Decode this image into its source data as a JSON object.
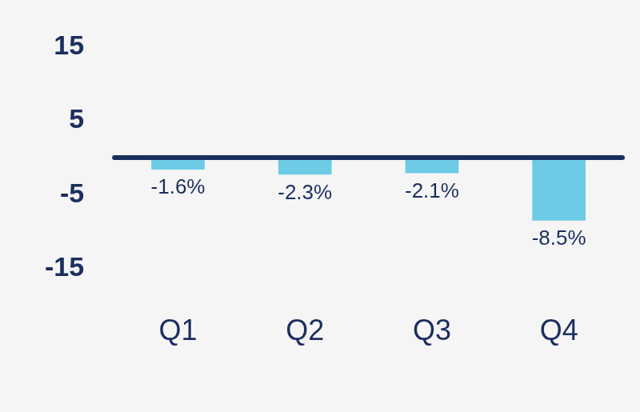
{
  "chart_data": {
    "type": "bar",
    "categories": [
      "Q1",
      "Q2",
      "Q3",
      "Q4"
    ],
    "values": [
      -1.6,
      -2.3,
      -2.1,
      -8.5
    ],
    "value_labels": [
      "-1.6%",
      "-2.3%",
      "-2.1%",
      "-8.5%"
    ],
    "data_labels": true,
    "color": "#6dcbe6",
    "ylim": [
      -15,
      15
    ],
    "yticks": [
      -15,
      -5,
      5,
      15
    ],
    "grid": false
  }
}
